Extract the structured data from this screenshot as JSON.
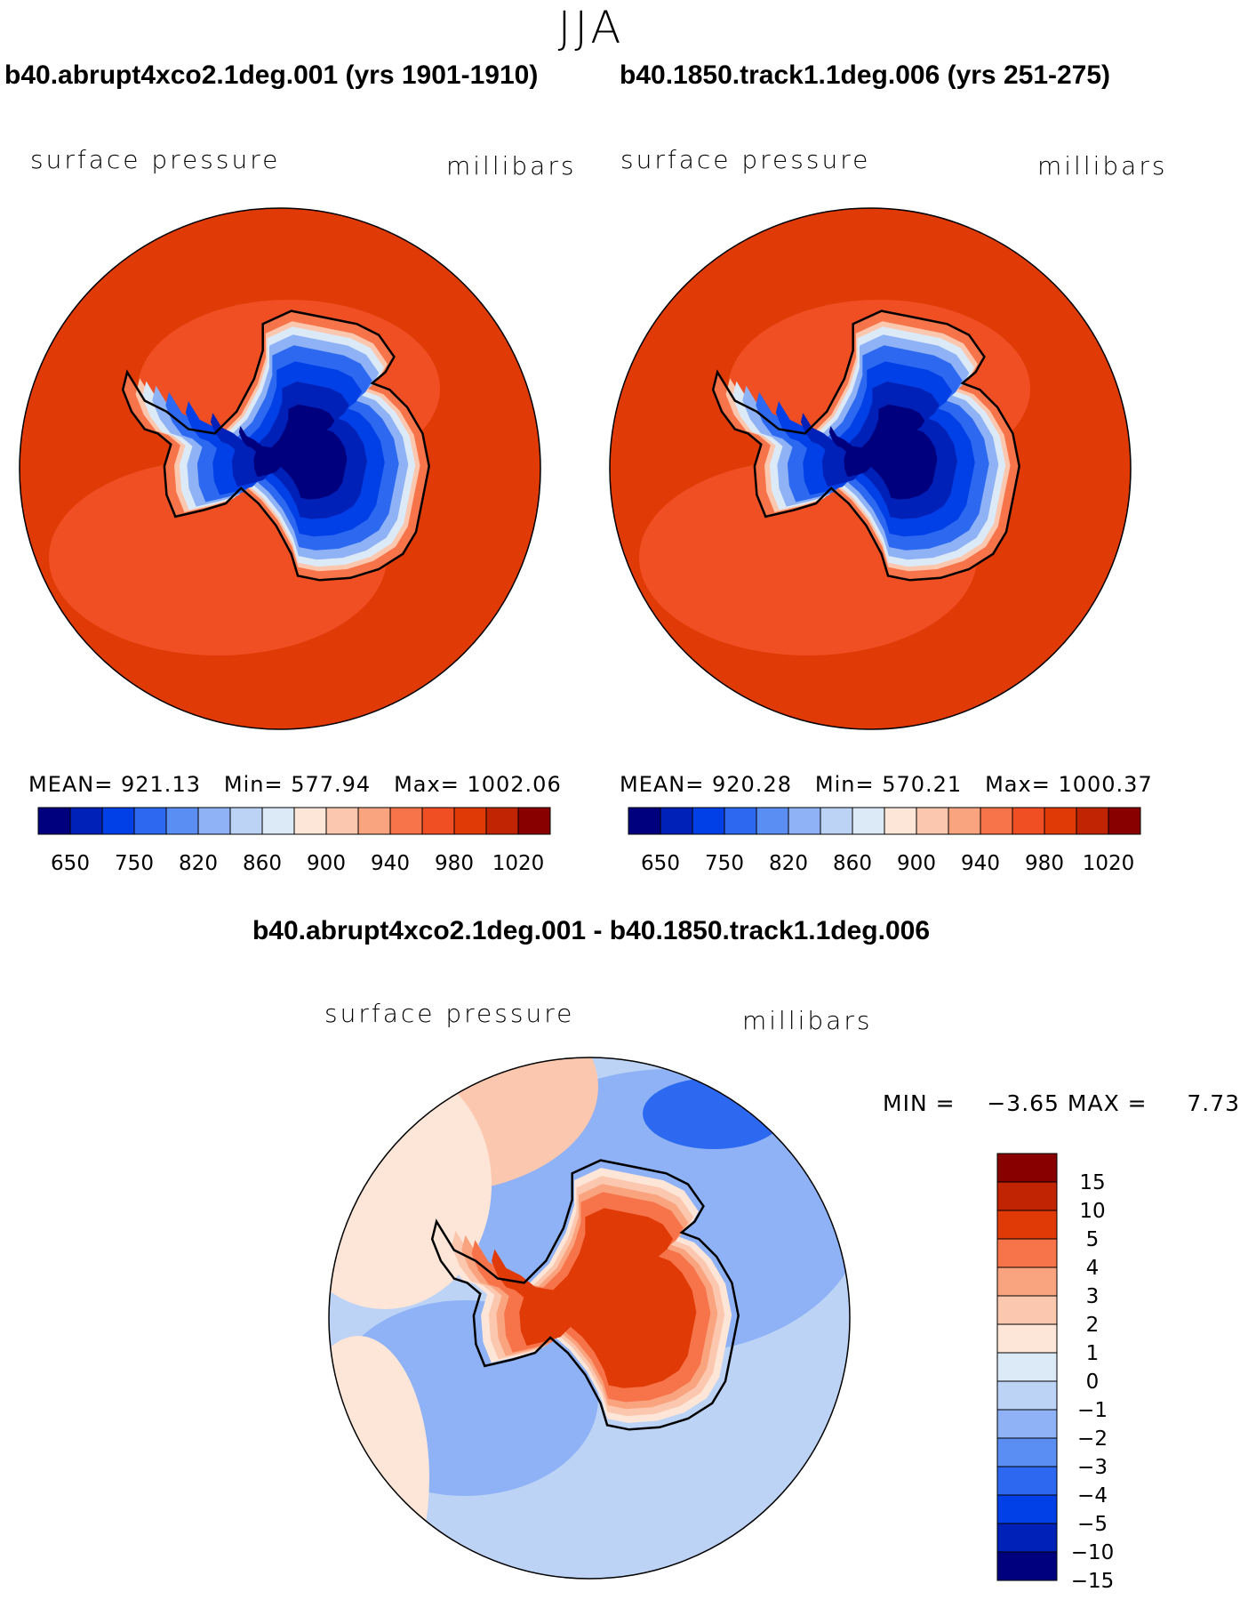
{
  "season": "JJA",
  "panels": [
    {
      "case_title": "b40.abrupt4xco2.1deg.001 (yrs 1901-1910)",
      "variable": "surface pressure",
      "units": "millibars",
      "stats": {
        "mean": "921.13",
        "min": "577.94",
        "max": "1002.06"
      }
    },
    {
      "case_title": "b40.1850.track1.1deg.006 (yrs 251-275)",
      "variable": "surface pressure",
      "units": "millibars",
      "stats": {
        "mean": "920.28",
        "min": "570.21",
        "max": "1000.37"
      }
    }
  ],
  "difference": {
    "title": "b40.abrupt4xco2.1deg.001 - b40.1850.track1.1deg.006",
    "variable": "surface pressure",
    "units": "millibars",
    "min_label": "MIN =",
    "min": "−3.65",
    "max_label": "MAX =",
    "max": "7.73"
  },
  "labels": {
    "mean": "MEAN=",
    "min": "Min=",
    "max": "Max="
  },
  "chart_data": [
    {
      "type": "heatmap",
      "projection": "south-polar-stereographic",
      "title": "b40.abrupt4xco2.1deg.001 (yrs 1901-1910)",
      "variable": "surface pressure",
      "units": "millibars",
      "mean": 921.13,
      "min": 577.94,
      "max": 1002.06,
      "contour_levels": [
        650,
        700,
        750,
        800,
        820,
        840,
        860,
        880,
        900,
        920,
        940,
        960,
        980,
        1000,
        1020
      ],
      "tick_labels": [
        "650",
        "750",
        "820",
        "860",
        "900",
        "940",
        "980",
        "1020"
      ],
      "colors": [
        "#00007f",
        "#0021b8",
        "#0040e6",
        "#2c68f0",
        "#5a8ef2",
        "#8eb2f5",
        "#bcd3f6",
        "#dce9f7",
        "#fde6d8",
        "#fbc7ae",
        "#f9a37f",
        "#f7734a",
        "#f04f23",
        "#e03a06",
        "#c02402",
        "#880000"
      ]
    },
    {
      "type": "heatmap",
      "projection": "south-polar-stereographic",
      "title": "b40.1850.track1.1deg.006 (yrs 251-275)",
      "variable": "surface pressure",
      "units": "millibars",
      "mean": 920.28,
      "min": 570.21,
      "max": 1000.37,
      "contour_levels": [
        650,
        700,
        750,
        800,
        820,
        840,
        860,
        880,
        900,
        920,
        940,
        960,
        980,
        1000,
        1020
      ],
      "tick_labels": [
        "650",
        "750",
        "820",
        "860",
        "900",
        "940",
        "980",
        "1020"
      ],
      "colors": [
        "#00007f",
        "#0021b8",
        "#0040e6",
        "#2c68f0",
        "#5a8ef2",
        "#8eb2f5",
        "#bcd3f6",
        "#dce9f7",
        "#fde6d8",
        "#fbc7ae",
        "#f9a37f",
        "#f7734a",
        "#f04f23",
        "#e03a06",
        "#c02402",
        "#880000"
      ]
    },
    {
      "type": "heatmap",
      "projection": "south-polar-stereographic",
      "title": "b40.abrupt4xco2.1deg.001 - b40.1850.track1.1deg.006",
      "variable": "surface pressure",
      "units": "millibars",
      "min": -3.65,
      "max": 7.73,
      "contour_levels": [
        15,
        10,
        5,
        4,
        3,
        2,
        1,
        0,
        -1,
        -2,
        -3,
        -4,
        -5,
        -10,
        -15
      ],
      "tick_labels": [
        "15",
        "10",
        "5",
        "4",
        "3",
        "2",
        "1",
        "0",
        "−1",
        "−2",
        "−3",
        "−4",
        "−5",
        "−10",
        "−15"
      ],
      "colors": [
        "#880000",
        "#c02402",
        "#e03a06",
        "#f7734a",
        "#f9a37f",
        "#fbc7ae",
        "#fde6d8",
        "#dce9f7",
        "#bcd3f6",
        "#8eb2f5",
        "#5a8ef2",
        "#2c68f0",
        "#0040e6",
        "#0021b8",
        "#00007f"
      ]
    }
  ]
}
